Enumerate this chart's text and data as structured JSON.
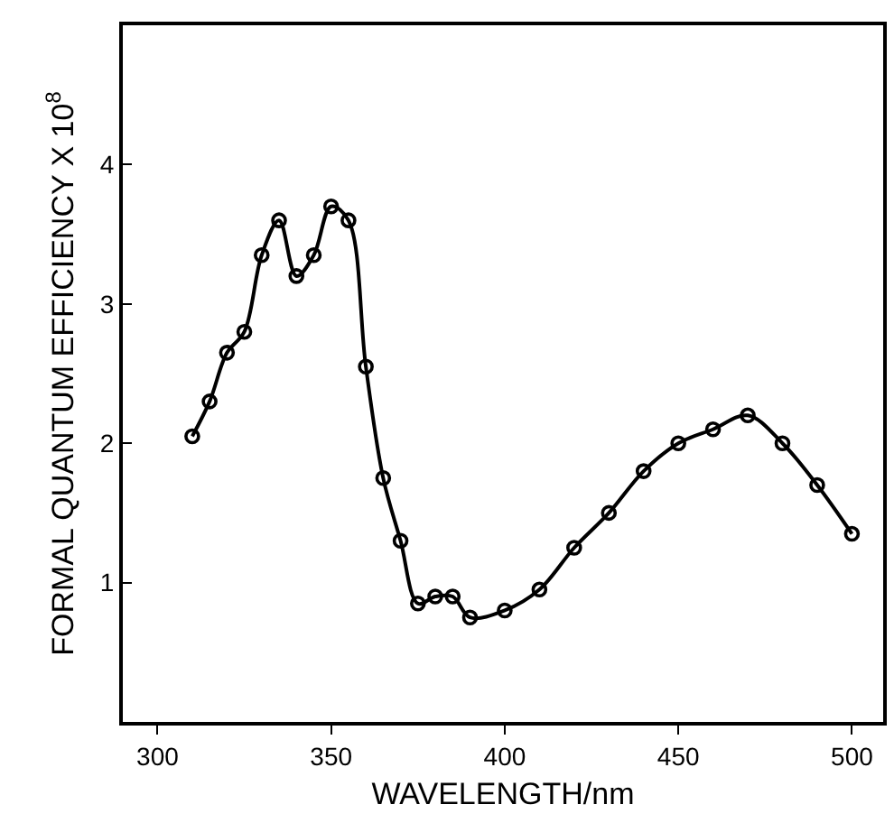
{
  "chart_data": {
    "type": "line",
    "xlabel": "WAVELENGTH/nm",
    "ylabel": "FORMAL QUANTUM EFFICIENCY X 10$^{8}$",
    "x": [
      310,
      315,
      320,
      325,
      330,
      335,
      340,
      345,
      350,
      355,
      360,
      365,
      370,
      375,
      380,
      385,
      390,
      400,
      410,
      420,
      430,
      440,
      450,
      460,
      470,
      480,
      490,
      500
    ],
    "series": [
      {
        "color": "#000000",
        "values": [
          2.05,
          2.3,
          2.65,
          2.8,
          3.35,
          3.6,
          3.2,
          3.35,
          3.7,
          3.6,
          2.55,
          1.75,
          1.3,
          0.85,
          0.9,
          0.9,
          0.75,
          0.8,
          0.95,
          1.25,
          1.5,
          1.8,
          2.0,
          2.1,
          2.2,
          2.0,
          1.7,
          1.35
        ]
      }
    ],
    "xlim": [
      290,
      509
    ],
    "ylim": [
      0,
      5
    ],
    "xticks": [
      300,
      350,
      400,
      450,
      500
    ],
    "yticks": [
      1,
      2,
      3,
      4
    ],
    "marker": "circle",
    "line_style": "solid",
    "legend": false
  }
}
